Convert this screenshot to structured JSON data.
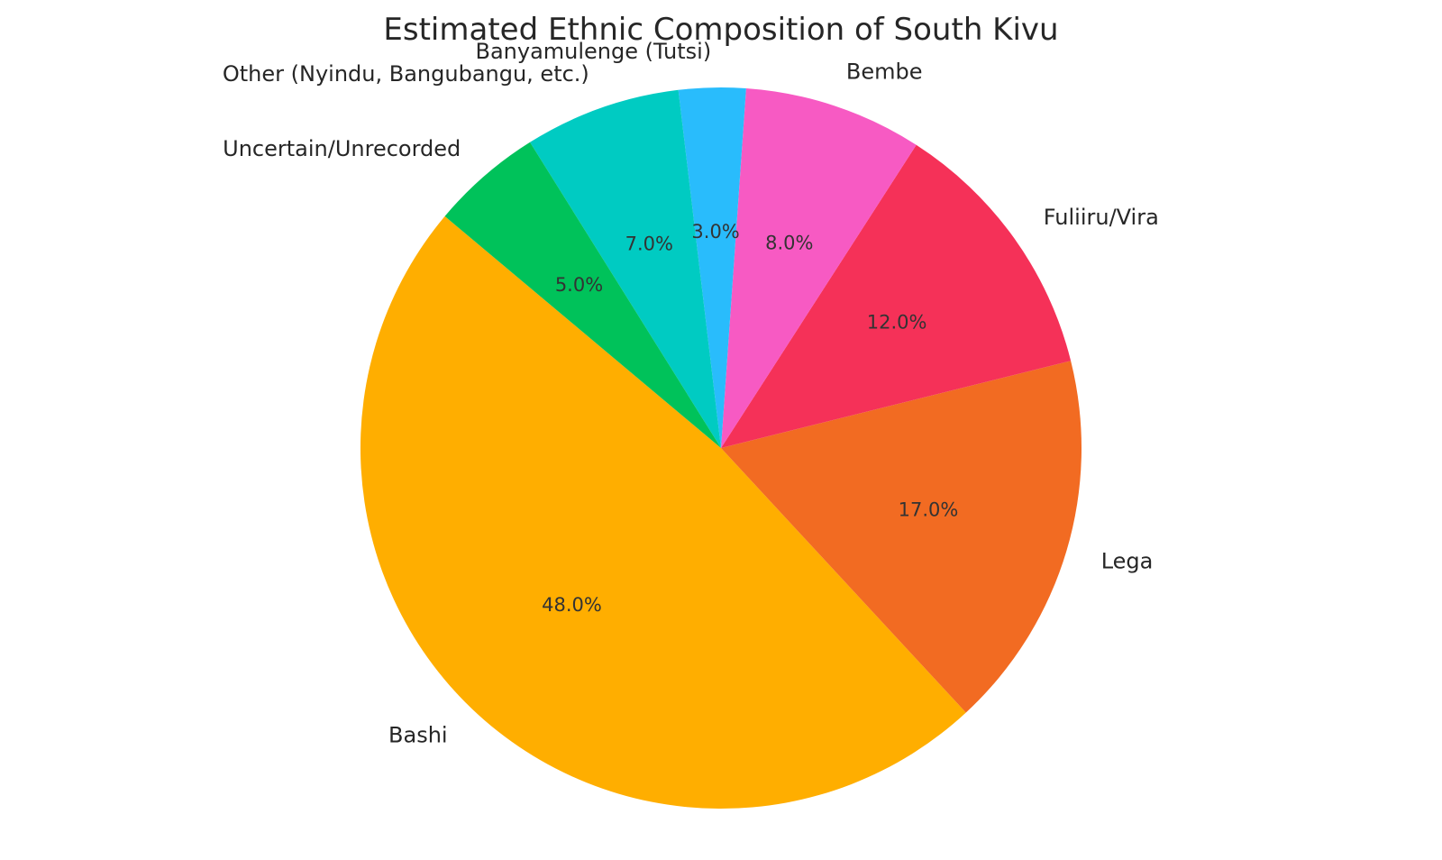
{
  "chart_data": {
    "type": "pie",
    "title": "Estimated Ethnic Composition of South Kivu",
    "start_angle_deg": 140,
    "direction": "counterclockwise",
    "slices": [
      {
        "label": "Bashi",
        "value": 48.0,
        "percent_label": "48.0%",
        "color": "#FFAE00"
      },
      {
        "label": "Lega",
        "value": 17.0,
        "percent_label": "17.0%",
        "color": "#F26B22"
      },
      {
        "label": "Fuliiru/Vira",
        "value": 12.0,
        "percent_label": "12.0%",
        "color": "#F53158"
      },
      {
        "label": "Bembe",
        "value": 8.0,
        "percent_label": "8.0%",
        "color": "#F75AC3"
      },
      {
        "label": "Banyamulenge (Tutsi)",
        "value": 3.0,
        "percent_label": "3.0%",
        "color": "#29BCFC"
      },
      {
        "label": "Other (Nyindu, Bangubangu, etc.)",
        "value": 7.0,
        "percent_label": "7.0%",
        "color": "#00CBC2"
      },
      {
        "label": "Uncertain/Unrecorded",
        "value": 5.0,
        "percent_label": "5.0%",
        "color": "#00C25A"
      }
    ]
  }
}
